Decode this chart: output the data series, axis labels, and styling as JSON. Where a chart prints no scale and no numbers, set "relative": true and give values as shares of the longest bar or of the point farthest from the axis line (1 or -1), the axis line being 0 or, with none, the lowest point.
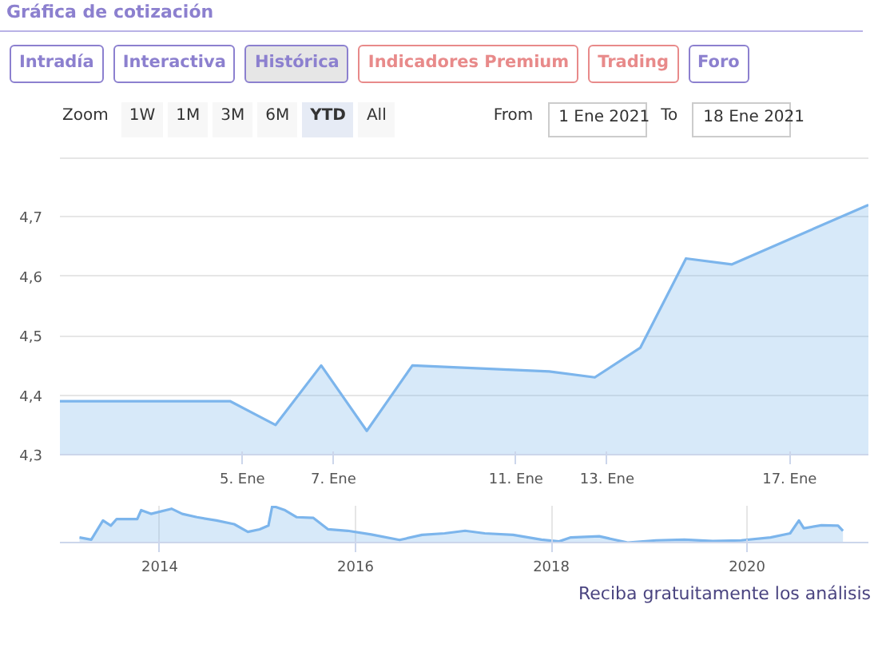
{
  "chart_data": [
    {
      "type": "area",
      "title": "Gráfica de cotización",
      "annotations": [
        "Intradía",
        "Interactiva",
        "Histórica",
        "Indicadores Premium",
        "Trading",
        "Foro",
        "Zoom",
        "1W",
        "1M",
        "3M",
        "6M",
        "YTD",
        "All",
        "From",
        "1 Ene 2021",
        "To",
        "18 Ene 2021",
        "Reciba gratuitamente los análisis"
      ],
      "x": [
        "2021-01-01",
        "2021-01-04T17:30",
        "2021-01-05T17:30",
        "2021-01-06T17:30",
        "2021-01-07T17:30",
        "2021-01-08T17:30",
        "2021-01-11T17:30",
        "2021-01-12T17:30",
        "2021-01-13T17:30",
        "2021-01-14T17:30",
        "2021-01-15T17:30",
        "2021-01-18T17:30"
      ],
      "series": [
        {
          "color": "#7cb5ec",
          "values": [
            4.39,
            4.39,
            4.35,
            4.45,
            4.34,
            4.45,
            4.44,
            4.43,
            4.48,
            4.63,
            4.62,
            4.72
          ]
        }
      ],
      "xlim": [
        "2021-01-01",
        "2021-01-18T17:30"
      ],
      "xticks": [
        {
          "value": "2021-01-05",
          "label": "5. Ene"
        },
        {
          "value": "2021-01-07",
          "label": "7. Ene"
        },
        {
          "value": "2021-01-11",
          "label": "11. Ene"
        },
        {
          "value": "2021-01-13",
          "label": "13. Ene"
        },
        {
          "value": "2021-01-17",
          "label": "17. Ene"
        }
      ],
      "ylim": [
        4.3,
        4.8
      ],
      "yticks": [
        {
          "value": 4.3,
          "label": "4,3"
        },
        {
          "value": 4.4,
          "label": "4,4"
        },
        {
          "value": 4.5,
          "label": "4,5"
        },
        {
          "value": 4.6,
          "label": "4,6"
        },
        {
          "value": 4.7,
          "label": "4,7"
        },
        {
          "value": 4.8,
          "label": null
        }
      ],
      "grid": "y"
    },
    {
      "type": "area",
      "relative": true,
      "tick_labels": "x",
      "grid": "x",
      "x": [
        2013.18,
        2013.3,
        2013.42,
        2013.5,
        2013.56,
        2013.77,
        2013.81,
        2013.91,
        2014.12,
        2014.23,
        2014.38,
        2014.58,
        2014.76,
        2014.9,
        2015.02,
        2015.11,
        2015.15,
        2015.28,
        2015.4,
        2015.57,
        2015.72,
        2015.92,
        2016.16,
        2016.45,
        2016.68,
        2016.91,
        2017.12,
        2017.32,
        2017.61,
        2017.9,
        2018.08,
        2018.2,
        2018.49,
        2018.78,
        2019.07,
        2019.36,
        2019.65,
        2019.94,
        2020.24,
        2020.44,
        2020.53,
        2020.58,
        2020.76,
        2020.93,
        2020.98
      ],
      "series": [
        {
          "color": "#7cb5ec",
          "values": [
            0.14,
            0.08,
            0.6,
            0.46,
            0.64,
            0.64,
            0.88,
            0.78,
            0.92,
            0.78,
            0.69,
            0.6,
            0.5,
            0.29,
            0.36,
            0.46,
            1,
            0.88,
            0.69,
            0.67,
            0.36,
            0.32,
            0.22,
            0.07,
            0.21,
            0.25,
            0.32,
            0.25,
            0.21,
            0.08,
            0.03,
            0.14,
            0.17,
            0,
            0.06,
            0.08,
            0.04,
            0.06,
            0.14,
            0.25,
            0.6,
            0.39,
            0.47,
            0.46,
            0.32
          ]
        }
      ],
      "xlim": [
        2012.98,
        2021.24
      ],
      "xticks": [
        2014,
        2016,
        2018,
        2020
      ]
    }
  ]
}
